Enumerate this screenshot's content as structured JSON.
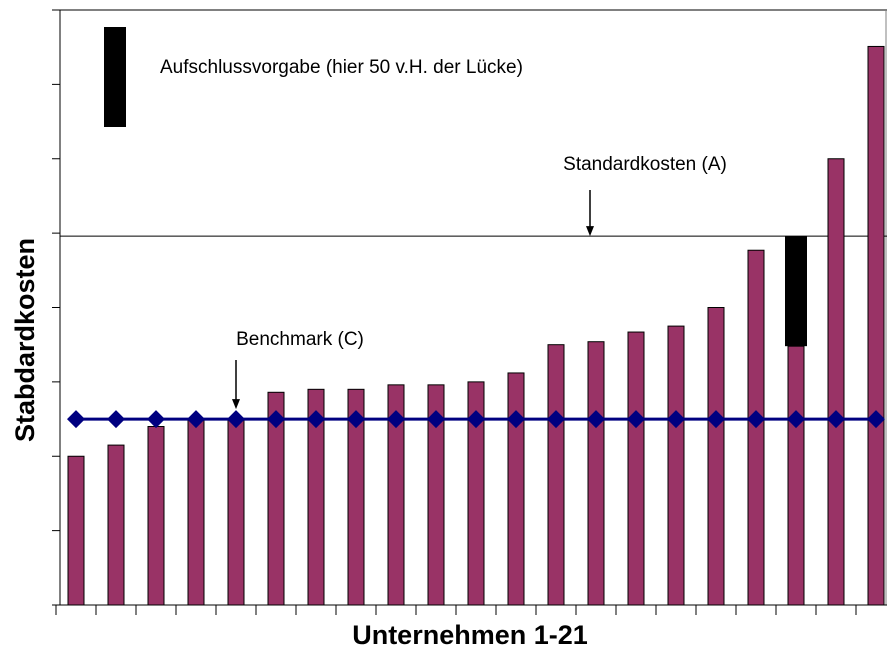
{
  "chart_data": {
    "type": "bar",
    "xlabel": "Unternehmen 1-21",
    "ylabel": "Stabdardkosten",
    "categories": [
      null,
      null,
      null,
      null,
      null,
      null,
      null,
      null,
      null,
      null,
      null,
      null,
      null,
      null,
      null,
      null,
      null,
      null,
      null,
      null,
      null
    ],
    "values": [
      2.0,
      2.15,
      2.4,
      2.5,
      2.5,
      2.86,
      2.9,
      2.9,
      2.96,
      2.96,
      3.0,
      3.12,
      3.5,
      3.54,
      3.67,
      3.75,
      4.0,
      4.77,
      3.48,
      6.0,
      7.51
    ],
    "color": "#993366",
    "gap": {
      "name": "Aufschlussvorgabe (hier 50 v.H. der Lücke)",
      "color": "#000000",
      "values": [
        null,
        null,
        null,
        null,
        null,
        null,
        null,
        null,
        null,
        null,
        null,
        null,
        null,
        null,
        null,
        null,
        null,
        null,
        1.48,
        null,
        null
      ]
    },
    "standard": {
      "label": "Standardkosten (A)",
      "value": 4.96
    },
    "benchmark": {
      "label": "Benchmark (C)",
      "value": 2.5,
      "color": "#000080"
    },
    "ylim": [
      0,
      8
    ],
    "yticks": [
      0,
      1,
      2,
      3,
      4,
      5,
      6,
      7,
      8
    ]
  }
}
